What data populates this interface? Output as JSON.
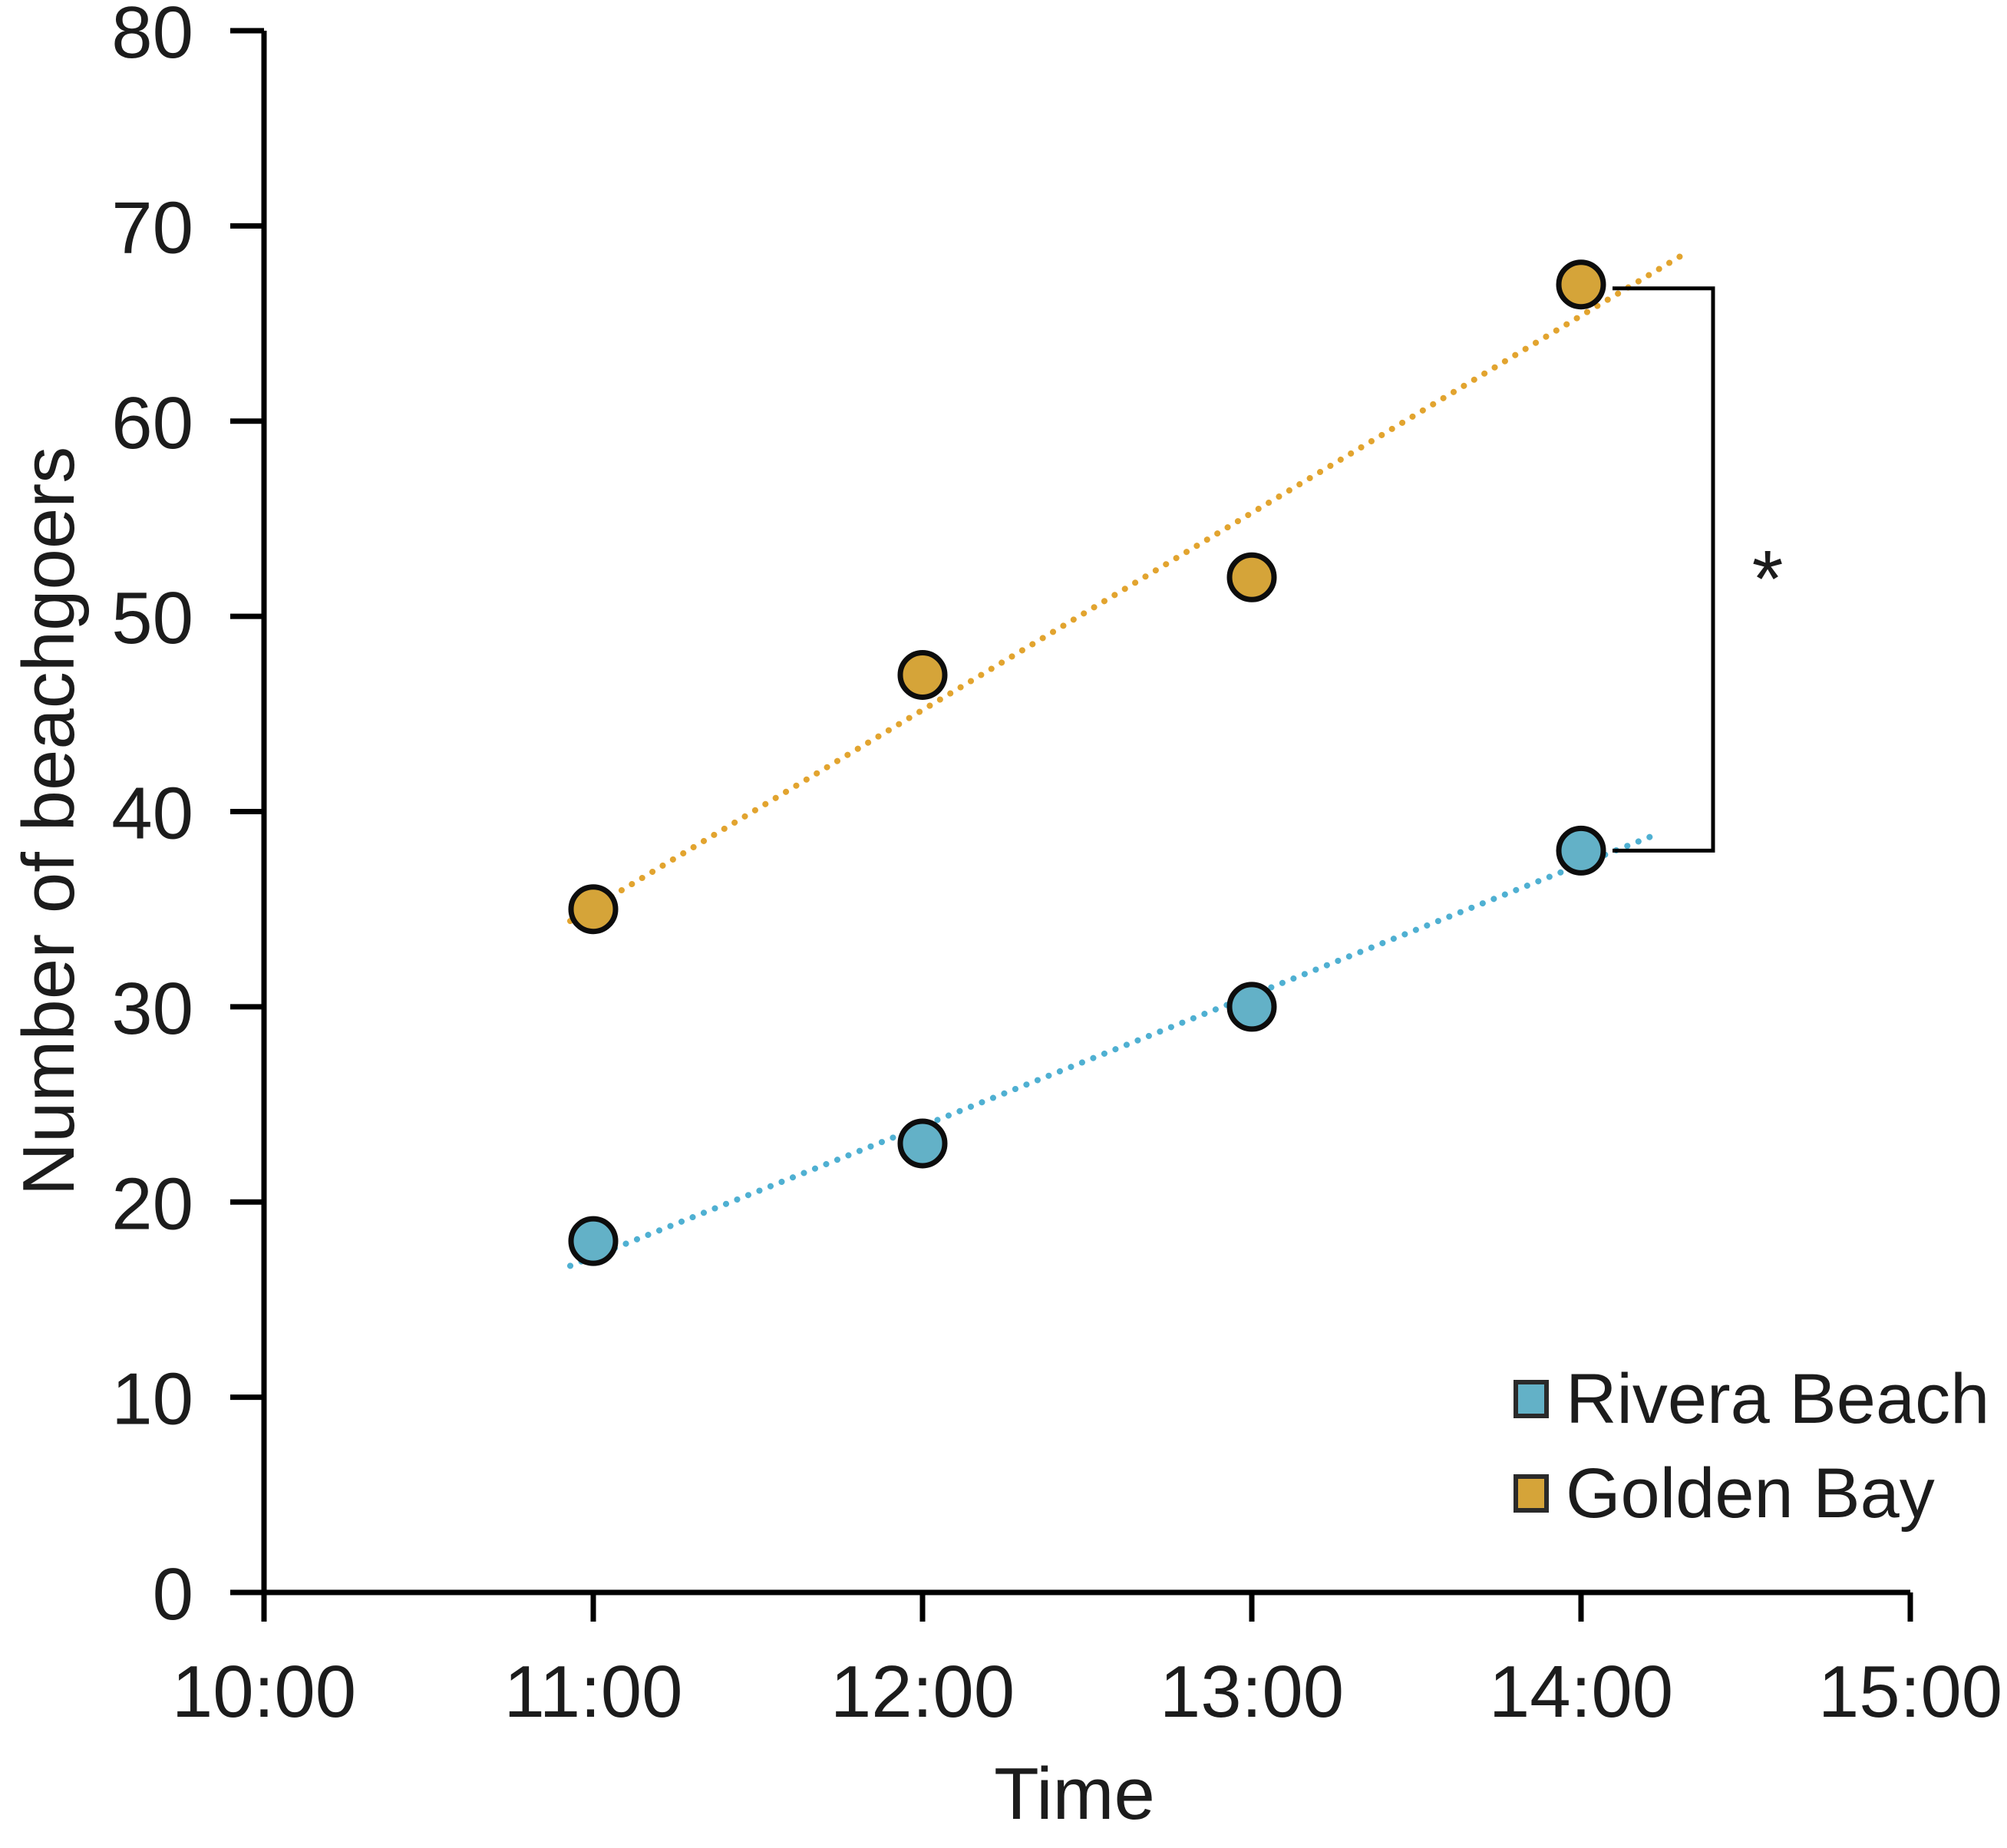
{
  "chart_data": {
    "type": "scatter",
    "title": "",
    "xlabel": "Time",
    "ylabel": "Number of beachgoers",
    "x_tick_labels": [
      "10:00",
      "11:00",
      "12:00",
      "13:00",
      "14:00",
      "15:00"
    ],
    "x_tick_hours": [
      10,
      11,
      12,
      13,
      14,
      15
    ],
    "y_ticks": [
      0,
      10,
      20,
      30,
      40,
      50,
      60,
      70,
      80
    ],
    "ylim": [
      0,
      80
    ],
    "grid": false,
    "legend_position": "inside-bottom-right",
    "series": [
      {
        "name": "Rivera Beach",
        "marker": "circle",
        "marker_color": "#63B1C7",
        "marker_outline": "#0d0d0d",
        "trendline_style": "dotted",
        "trendline_color": "#4FB0D2",
        "x_hours": [
          11,
          12,
          13,
          14
        ],
        "x_labels": [
          "11:00",
          "12:00",
          "13:00",
          "14:00"
        ],
        "values": [
          18,
          23,
          30,
          38
        ]
      },
      {
        "name": "Golden Bay",
        "marker": "circle",
        "marker_color": "#D5A439",
        "marker_outline": "#0d0d0d",
        "trendline_style": "dotted",
        "trendline_color": "#E2A42F",
        "x_hours": [
          11,
          12,
          13,
          14
        ],
        "x_labels": [
          "11:00",
          "12:00",
          "13:00",
          "14:00"
        ],
        "values": [
          35,
          47,
          52,
          67
        ]
      }
    ],
    "annotation": {
      "symbol": "*",
      "bracket_from": {
        "series": "Golden Bay",
        "x": "14:00",
        "value": 67
      },
      "bracket_to": {
        "series": "Rivera Beach",
        "x": "14:00",
        "value": 38
      }
    },
    "axis_color": "#000000",
    "text_color": "#1c1c1c"
  }
}
